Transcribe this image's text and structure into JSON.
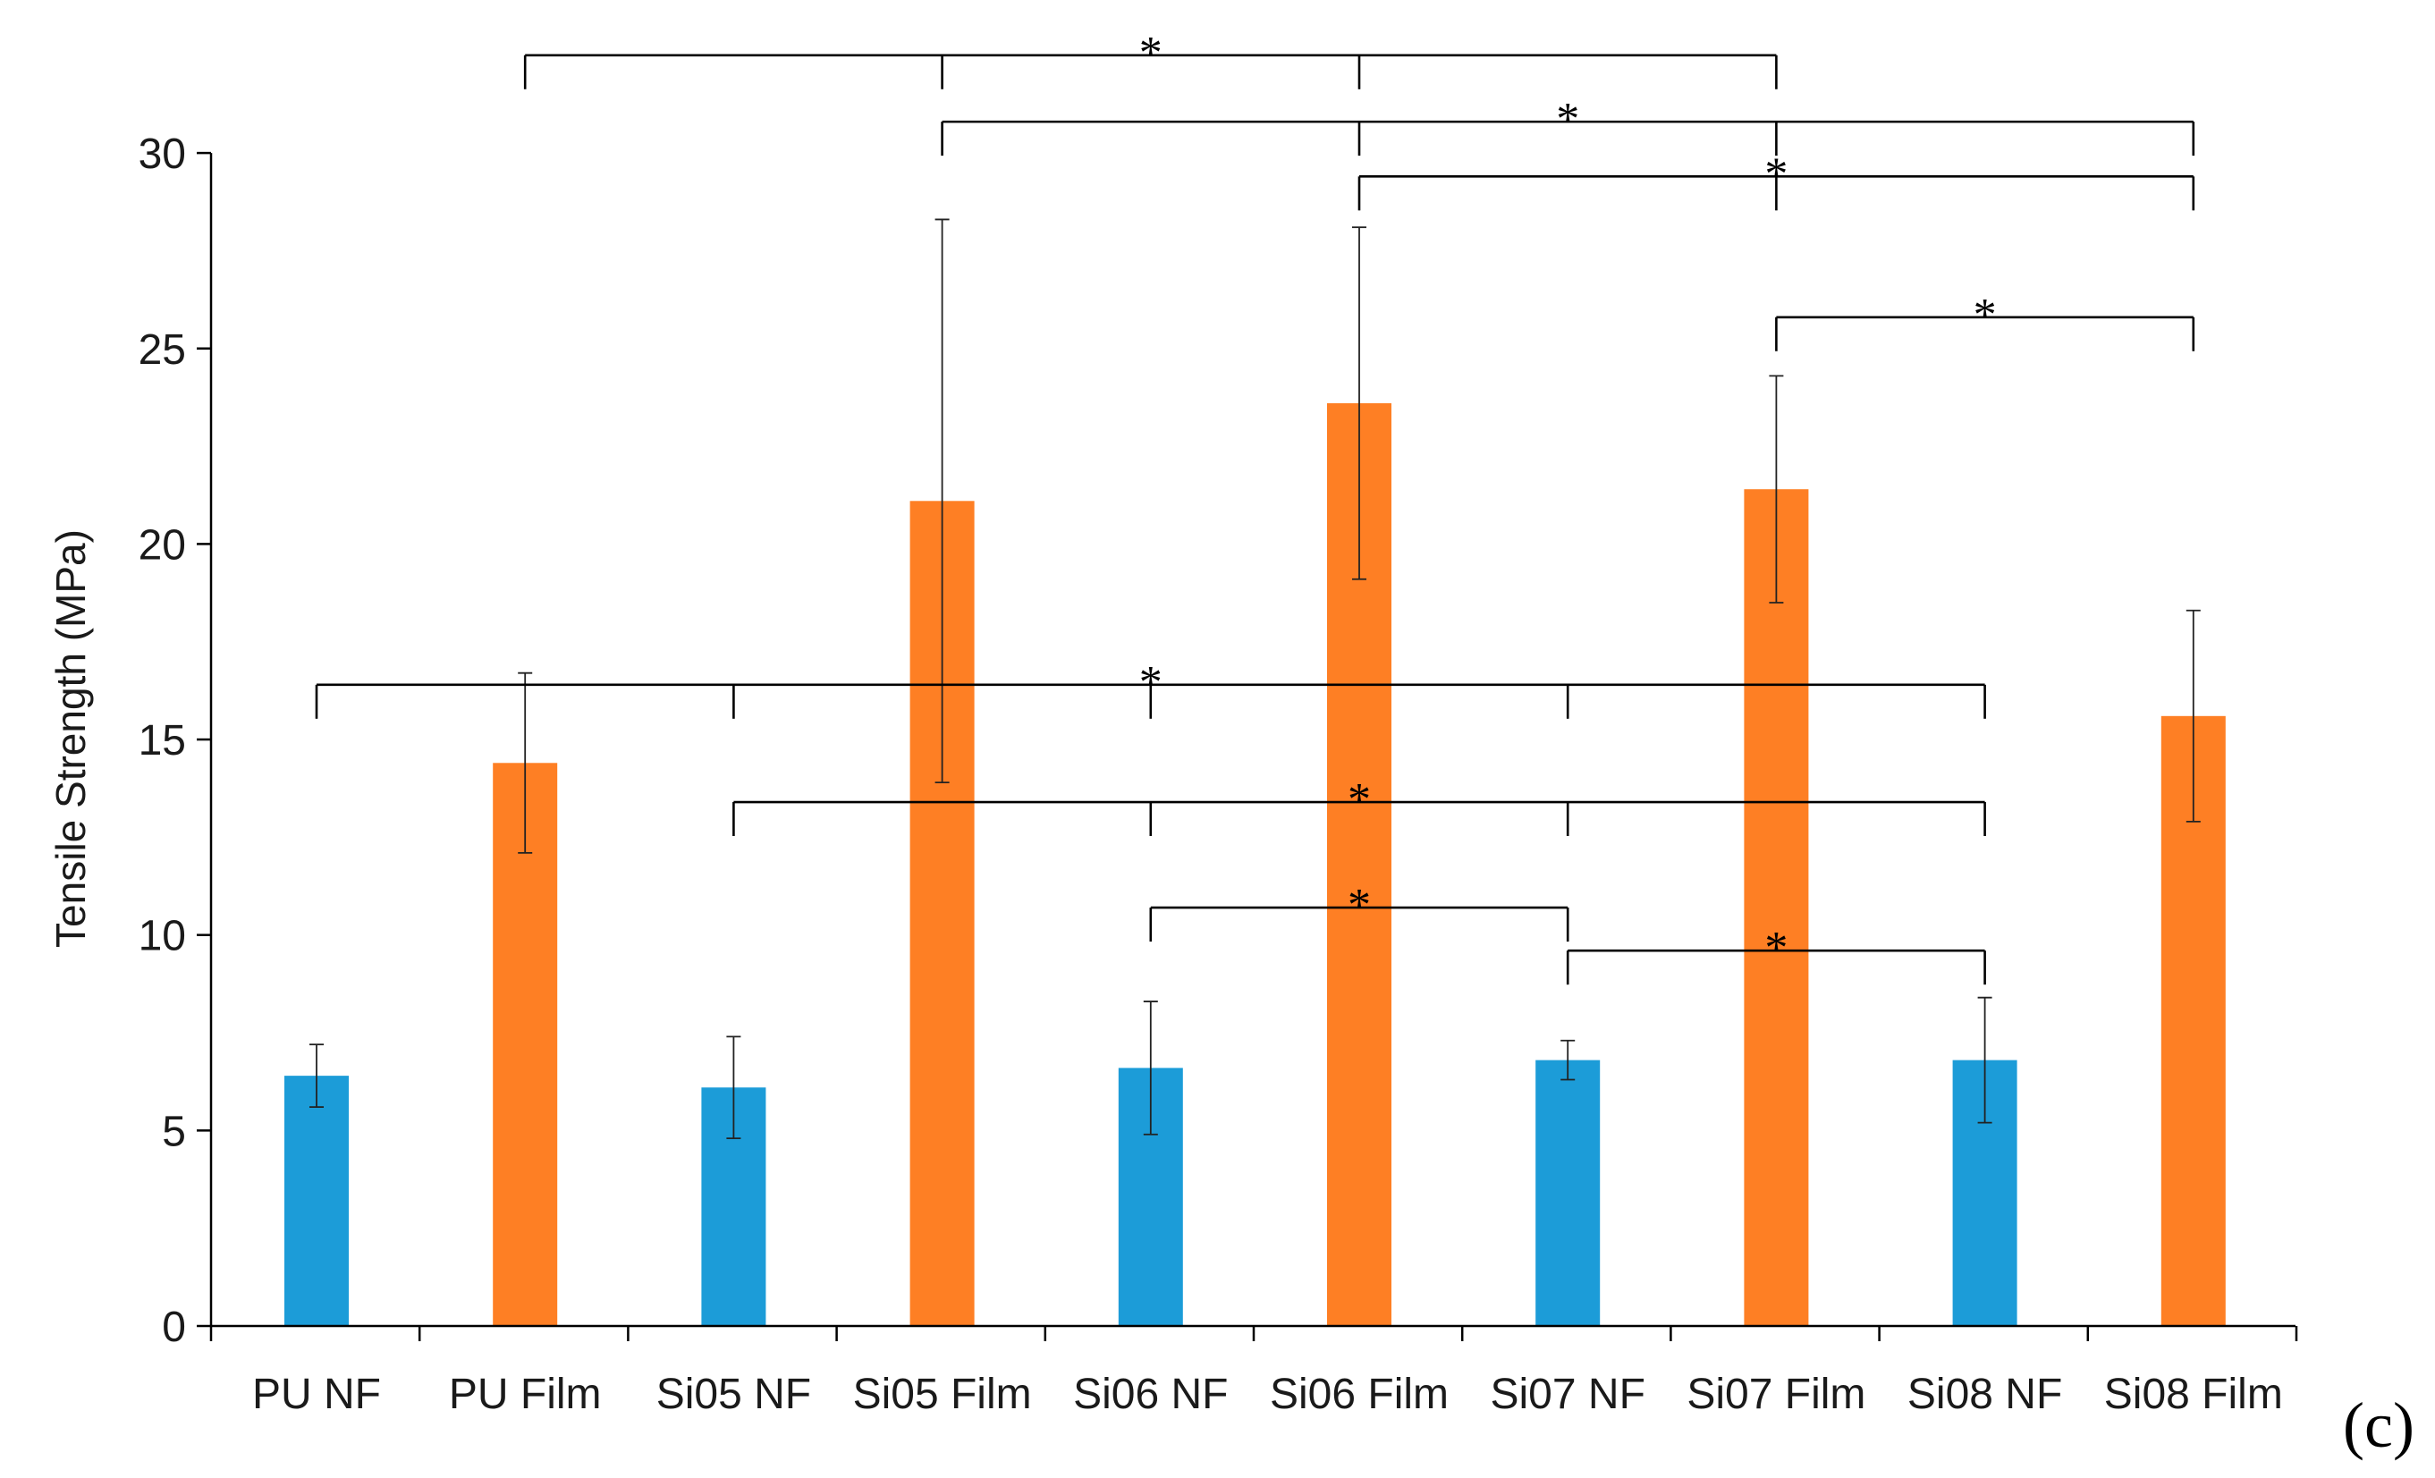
{
  "panel_label": "(c)",
  "colors": {
    "nf": "#1c9cd8",
    "film": "#fe7f24",
    "axis": "#000000"
  },
  "chart_data": {
    "type": "bar",
    "title": "",
    "xlabel": "",
    "ylabel": "Tensile Strength (MPa)",
    "ylim": [
      0,
      30
    ],
    "yticks": [
      0,
      5,
      10,
      15,
      20,
      25,
      30
    ],
    "grid": false,
    "categories": [
      "PU NF",
      "PU Film",
      "Si05 NF",
      "Si05 Film",
      "Si06 NF",
      "Si06 Film",
      "Si07 NF",
      "Si07 Film",
      "Si08 NF",
      "Si08 Film"
    ],
    "values": [
      6.4,
      14.4,
      6.1,
      21.1,
      6.6,
      23.6,
      6.8,
      21.4,
      6.8,
      15.6
    ],
    "errors": [
      0.8,
      2.3,
      1.3,
      7.2,
      1.7,
      4.5,
      0.5,
      2.9,
      1.6,
      2.7
    ],
    "series_kind": [
      "nf",
      "film",
      "nf",
      "film",
      "nf",
      "film",
      "nf",
      "film",
      "nf",
      "film"
    ],
    "significance": [
      {
        "label": "*",
        "groups": [
          1,
          3,
          5,
          7
        ],
        "level": 32.5
      },
      {
        "label": "*",
        "groups": [
          3,
          5,
          7,
          9
        ],
        "level": 30.8
      },
      {
        "label": "*",
        "groups": [
          5,
          7,
          9
        ],
        "level": 29.4
      },
      {
        "label": "*",
        "groups": [
          7,
          9
        ],
        "level": 25.8
      },
      {
        "label": "*",
        "groups": [
          0,
          2,
          4,
          6,
          8
        ],
        "level": 16.4
      },
      {
        "label": "*",
        "groups": [
          2,
          4,
          6,
          8
        ],
        "level": 13.4
      },
      {
        "label": "*",
        "groups": [
          4,
          6
        ],
        "level": 10.7
      },
      {
        "label": "*",
        "groups": [
          6,
          8
        ],
        "level": 9.6
      }
    ]
  }
}
